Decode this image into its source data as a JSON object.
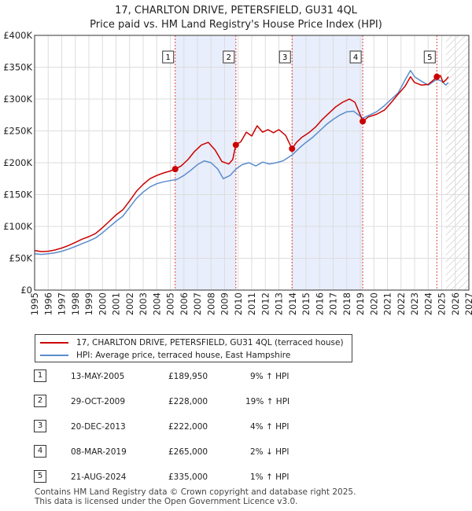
{
  "chart_data": {
    "type": "line",
    "title": "17, CHARLTON DRIVE, PETERSFIELD, GU31 4QL",
    "subtitle": "Price paid vs. HM Land Registry's House Price Index (HPI)",
    "x_range": [
      1995,
      2027
    ],
    "ylim": [
      0,
      400000
    ],
    "x_ticks": [
      "1995",
      "1996",
      "1997",
      "1998",
      "1999",
      "2000",
      "2001",
      "2002",
      "2003",
      "2004",
      "2005",
      "2006",
      "2007",
      "2008",
      "2009",
      "2010",
      "2011",
      "2012",
      "2013",
      "2014",
      "2015",
      "2016",
      "2017",
      "2018",
      "2019",
      "2020",
      "2021",
      "2022",
      "2023",
      "2024",
      "2025",
      "2026",
      "2027"
    ],
    "y_ticks": [
      {
        "value": 0,
        "label": "£0"
      },
      {
        "value": 50000,
        "label": "£50K"
      },
      {
        "value": 100000,
        "label": "£100K"
      },
      {
        "value": 150000,
        "label": "£150K"
      },
      {
        "value": 200000,
        "label": "£200K"
      },
      {
        "value": 250000,
        "label": "£250K"
      },
      {
        "value": 300000,
        "label": "£300K"
      },
      {
        "value": 350000,
        "label": "£350K"
      },
      {
        "value": 400000,
        "label": "£400K"
      }
    ],
    "shaded_spans": [
      [
        2005.36,
        2009.83
      ],
      [
        2013.97,
        2019.18
      ]
    ],
    "hatched_from": 2025.3,
    "series": [
      {
        "name": "17, CHARLTON DRIVE, PETERSFIELD, GU31 4QL (terraced house)",
        "color": "#cc0000",
        "points": [
          [
            1995,
            62000
          ],
          [
            1995.5,
            60500
          ],
          [
            1996,
            61000
          ],
          [
            1996.5,
            63000
          ],
          [
            1997,
            66000
          ],
          [
            1997.5,
            70000
          ],
          [
            1998,
            75000
          ],
          [
            1998.5,
            80000
          ],
          [
            1999,
            84000
          ],
          [
            1999.5,
            89000
          ],
          [
            2000,
            98000
          ],
          [
            2000.5,
            108000
          ],
          [
            2001,
            118000
          ],
          [
            2001.5,
            126000
          ],
          [
            2002,
            140000
          ],
          [
            2002.5,
            155000
          ],
          [
            2003,
            166000
          ],
          [
            2003.5,
            175000
          ],
          [
            2004,
            180000
          ],
          [
            2004.5,
            184000
          ],
          [
            2005,
            187000
          ],
          [
            2005.36,
            189950
          ],
          [
            2005.8,
            195000
          ],
          [
            2006.3,
            205000
          ],
          [
            2006.8,
            218000
          ],
          [
            2007.3,
            228000
          ],
          [
            2007.8,
            232000
          ],
          [
            2008.3,
            220000
          ],
          [
            2008.8,
            202000
          ],
          [
            2009.3,
            198000
          ],
          [
            2009.6,
            205000
          ],
          [
            2009.83,
            228000
          ],
          [
            2010.2,
            233000
          ],
          [
            2010.6,
            248000
          ],
          [
            2011,
            242000
          ],
          [
            2011.4,
            258000
          ],
          [
            2011.8,
            248000
          ],
          [
            2012.2,
            252000
          ],
          [
            2012.6,
            247000
          ],
          [
            2013,
            252000
          ],
          [
            2013.5,
            243000
          ],
          [
            2013.97,
            222000
          ],
          [
            2014.3,
            232000
          ],
          [
            2014.7,
            240000
          ],
          [
            2015.2,
            247000
          ],
          [
            2015.7,
            256000
          ],
          [
            2016.2,
            268000
          ],
          [
            2016.7,
            278000
          ],
          [
            2017.2,
            288000
          ],
          [
            2017.7,
            295000
          ],
          [
            2018.2,
            300000
          ],
          [
            2018.6,
            295000
          ],
          [
            2019.0,
            275000
          ],
          [
            2019.18,
            265000
          ],
          [
            2019.6,
            272000
          ],
          [
            2020.2,
            276000
          ],
          [
            2020.8,
            283000
          ],
          [
            2021.3,
            295000
          ],
          [
            2021.8,
            308000
          ],
          [
            2022.3,
            320000
          ],
          [
            2022.7,
            335000
          ],
          [
            2023.0,
            326000
          ],
          [
            2023.5,
            322000
          ],
          [
            2024.0,
            323000
          ],
          [
            2024.4,
            330000
          ],
          [
            2024.64,
            335000
          ],
          [
            2024.9,
            337000
          ],
          [
            2025.1,
            326000
          ],
          [
            2025.3,
            330000
          ],
          [
            2025.5,
            335000
          ]
        ]
      },
      {
        "name": "HPI: Average price, terraced house, East Hampshire",
        "color": "#5b8ccc",
        "points": [
          [
            1995,
            57000
          ],
          [
            1995.5,
            56000
          ],
          [
            1996,
            57000
          ],
          [
            1996.5,
            58500
          ],
          [
            1997,
            61000
          ],
          [
            1997.5,
            64500
          ],
          [
            1998,
            68500
          ],
          [
            1998.5,
            73000
          ],
          [
            1999,
            77000
          ],
          [
            1999.5,
            82000
          ],
          [
            2000,
            90000
          ],
          [
            2000.5,
            99000
          ],
          [
            2001,
            108000
          ],
          [
            2001.5,
            116000
          ],
          [
            2002,
            130000
          ],
          [
            2002.5,
            144000
          ],
          [
            2003,
            154000
          ],
          [
            2003.5,
            162000
          ],
          [
            2004,
            167000
          ],
          [
            2004.5,
            170000
          ],
          [
            2005,
            172000
          ],
          [
            2005.5,
            174000
          ],
          [
            2006,
            180000
          ],
          [
            2006.5,
            188000
          ],
          [
            2007,
            197000
          ],
          [
            2007.5,
            203000
          ],
          [
            2008,
            200000
          ],
          [
            2008.5,
            190000
          ],
          [
            2008.9,
            175000
          ],
          [
            2009.4,
            180000
          ],
          [
            2009.83,
            190000
          ],
          [
            2010.3,
            197000
          ],
          [
            2010.8,
            200000
          ],
          [
            2011.3,
            195000
          ],
          [
            2011.8,
            201000
          ],
          [
            2012.3,
            198000
          ],
          [
            2012.8,
            200000
          ],
          [
            2013.3,
            203000
          ],
          [
            2013.97,
            212000
          ],
          [
            2014.5,
            223000
          ],
          [
            2015,
            232000
          ],
          [
            2015.5,
            240000
          ],
          [
            2016,
            250000
          ],
          [
            2016.5,
            260000
          ],
          [
            2017,
            268000
          ],
          [
            2017.5,
            275000
          ],
          [
            2018,
            280000
          ],
          [
            2018.5,
            281000
          ],
          [
            2019.18,
            270000
          ],
          [
            2019.6,
            274000
          ],
          [
            2020.2,
            280000
          ],
          [
            2020.8,
            290000
          ],
          [
            2021.3,
            300000
          ],
          [
            2021.8,
            310000
          ],
          [
            2022.3,
            330000
          ],
          [
            2022.7,
            345000
          ],
          [
            2023.0,
            335000
          ],
          [
            2023.5,
            328000
          ],
          [
            2024.0,
            322000
          ],
          [
            2024.64,
            331000
          ],
          [
            2025.0,
            328000
          ],
          [
            2025.3,
            322000
          ],
          [
            2025.5,
            326000
          ]
        ]
      }
    ],
    "markers": [
      {
        "label": "1",
        "x": 2005.36,
        "y": 189950
      },
      {
        "label": "2",
        "x": 2009.83,
        "y": 228000
      },
      {
        "label": "3",
        "x": 2013.97,
        "y": 222000
      },
      {
        "label": "4",
        "x": 2019.18,
        "y": 265000
      },
      {
        "label": "5",
        "x": 2024.64,
        "y": 335000
      }
    ]
  },
  "legend": {
    "property_label": "17, CHARLTON DRIVE, PETERSFIELD, GU31 4QL (terraced house)",
    "hpi_label": "HPI: Average price, terraced house, East Hampshire",
    "property_color": "#cc0000",
    "hpi_color": "#5b8ccc"
  },
  "sales": [
    {
      "num": "1",
      "date": "13-MAY-2005",
      "price": "£189,950",
      "hpi": "9% ↑ HPI"
    },
    {
      "num": "2",
      "date": "29-OCT-2009",
      "price": "£228,000",
      "hpi": "19% ↑ HPI"
    },
    {
      "num": "3",
      "date": "20-DEC-2013",
      "price": "£222,000",
      "hpi": "4% ↑ HPI"
    },
    {
      "num": "4",
      "date": "08-MAR-2019",
      "price": "£265,000",
      "hpi": "2% ↓ HPI"
    },
    {
      "num": "5",
      "date": "21-AUG-2024",
      "price": "£335,000",
      "hpi": "1% ↑ HPI"
    }
  ],
  "footer": {
    "line1": "Contains HM Land Registry data © Crown copyright and database right 2025.",
    "line2": "This data is licensed under the Open Government Licence v3.0."
  }
}
